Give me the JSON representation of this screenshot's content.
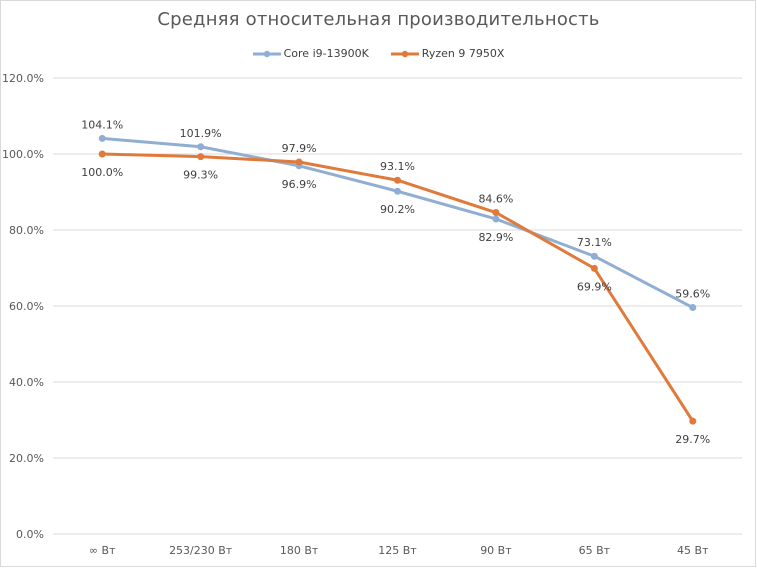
{
  "chart_data": {
    "type": "line",
    "title": "Средняя относительная производительность",
    "xlabel": "",
    "ylabel": "",
    "ylim": [
      0,
      120
    ],
    "y_ticks": [
      "0.0%",
      "20.0%",
      "40.0%",
      "60.0%",
      "80.0%",
      "100.0%",
      "120.0%"
    ],
    "grid": true,
    "legend_position": "top",
    "categories": [
      "∞ Вт",
      "253/230 Вт",
      "180 Вт",
      "125 Вт",
      "90 Вт",
      "65 Вт",
      "45 Вт"
    ],
    "series": [
      {
        "name": "Core i9-13900K",
        "color": "#8faed2",
        "values": [
          104.1,
          101.9,
          96.9,
          90.2,
          82.9,
          73.1,
          59.6
        ],
        "labels": [
          "104.1%",
          "101.9%",
          "96.9%",
          "90.2%",
          "82.9%",
          "73.1%",
          "59.6%"
        ]
      },
      {
        "name": "Ryzen 9 7950X",
        "color": "#e07a3a",
        "values": [
          100.0,
          99.3,
          97.9,
          93.1,
          84.6,
          69.9,
          29.7
        ],
        "labels": [
          "100.0%",
          "99.3%",
          "97.9%",
          "93.1%",
          "84.6%",
          "69.9%",
          "29.7%"
        ]
      }
    ]
  }
}
